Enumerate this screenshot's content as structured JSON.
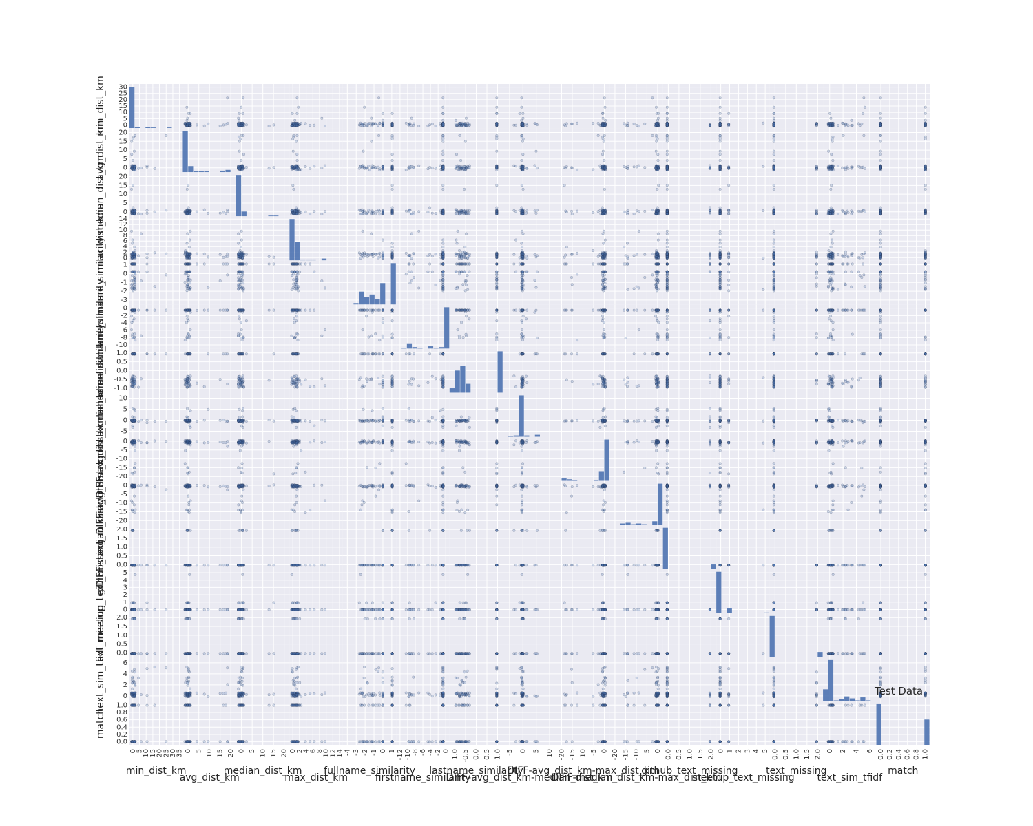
{
  "chart_data": {
    "type": "scatter",
    "subtype": "scatter-matrix",
    "title": "Test Data",
    "variables": [
      "min_dist_km",
      "avg_dist_km",
      "median_dist_km",
      "max_dist_km",
      "fullname_similarity",
      "firstname_similarity",
      "lastname_similarity",
      "DIFF-avg_dist_km-median_dist_km",
      "DIFF-avg_dist_km-max_dist_km",
      "DIFF-median_dist_km-max_dist_km",
      "github_text_missing",
      "meetup_text_missing",
      "text_missing",
      "text_sim_tfidf",
      "match"
    ],
    "ranges": [
      [
        0,
        33
      ],
      [
        0,
        22
      ],
      [
        0,
        22
      ],
      [
        0,
        14
      ],
      [
        -4,
        1.2
      ],
      [
        -12,
        1.2
      ],
      [
        -1.2,
        1.2
      ],
      [
        -6,
        11
      ],
      [
        -22,
        1
      ],
      [
        -22,
        1
      ],
      [
        -0.1,
        2.2
      ],
      [
        -0.2,
        5.5
      ],
      [
        -0.1,
        2.2
      ],
      [
        -0.5,
        7.5
      ],
      [
        -0.05,
        1.05
      ]
    ],
    "y_ticks": [
      [
        "0",
        "5",
        "10",
        "15",
        "20",
        "25",
        "30"
      ],
      [
        "0",
        "5",
        "10",
        "15",
        "20"
      ],
      [
        "0",
        "5",
        "10",
        "15",
        "20"
      ],
      [
        "0",
        "2",
        "4",
        "6",
        "8",
        "10",
        "12",
        "14"
      ],
      [
        "-3",
        "-2",
        "-1",
        "0",
        "1"
      ],
      [
        "-10",
        "-8",
        "-6",
        "-4",
        "-2",
        "0"
      ],
      [
        "-1.0",
        "-0.5",
        "0.0",
        "0.5",
        "1.0"
      ],
      [
        "-5",
        "0",
        "5",
        "10"
      ],
      [
        "-20",
        "-15",
        "-10",
        "-5",
        "0"
      ],
      [
        "-20",
        "-15",
        "-10",
        "-5",
        "0"
      ],
      [
        "0.0",
        "0.5",
        "1.0",
        "1.5",
        "2.0"
      ],
      [
        "0",
        "1",
        "2",
        "3",
        "4",
        "5"
      ],
      [
        "0.0",
        "0.5",
        "1.0",
        "1.5",
        "2.0"
      ],
      [
        "0",
        "2",
        "4",
        "6"
      ],
      [
        "0.0",
        "0.2",
        "0.4",
        "0.6",
        "0.8",
        "1.0"
      ]
    ],
    "x_ticks": [
      [
        "0",
        "5",
        "10",
        "15",
        "20",
        "25",
        "30",
        "35"
      ],
      [
        "0",
        "5",
        "10",
        "15",
        "20"
      ],
      [
        "0",
        "5",
        "10",
        "15",
        "20"
      ],
      [
        "0",
        "2",
        "4",
        "6",
        "8",
        "10",
        "12",
        "14"
      ],
      [
        "-4",
        "-3",
        "-2",
        "-1",
        "0",
        "1"
      ],
      [
        "-12",
        "-10",
        "-8",
        "-6",
        "-4",
        "-2",
        "0"
      ],
      [
        "-1.0",
        "-0.5",
        "0.0",
        "0.5",
        "1.0"
      ],
      [
        "-5",
        "0",
        "5",
        "10"
      ],
      [
        "-20",
        "-15",
        "-10",
        "-5",
        "0"
      ],
      [
        "-20",
        "-15",
        "-10",
        "-5",
        "0"
      ],
      [
        "0.0",
        "0.5",
        "1.0",
        "1.5",
        "2.0"
      ],
      [
        "0",
        "1",
        "2",
        "3",
        "4",
        "5"
      ],
      [
        "0.0",
        "0.5",
        "1.0",
        "1.5",
        "2.0"
      ],
      [
        "0",
        "2",
        "4",
        "6"
      ],
      [
        "0.0",
        "0.2",
        "0.4",
        "0.6",
        "0.8",
        "1.0"
      ]
    ],
    "diagonal": "histogram",
    "histogram_bins": 10,
    "grid": true,
    "colors": {
      "panel_background": "#eaeaf2",
      "grid": "#ffffff",
      "marker": "#4c72b0",
      "marker_edge": "#1f2d4d",
      "histogram": "#4c72b0"
    }
  }
}
